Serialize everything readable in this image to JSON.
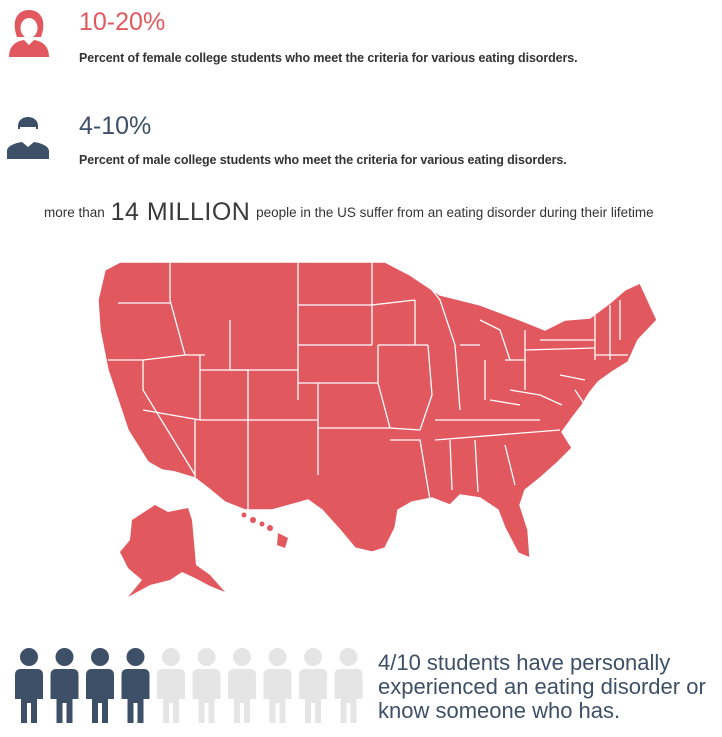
{
  "colors": {
    "accent_red": "#e2585f",
    "navy": "#3d5068",
    "light_gray": "#e5e5e5",
    "text": "#333333"
  },
  "female_stat": {
    "icon": "female-avatar-icon",
    "figure": "10-20%",
    "description": "Percent of female college students who meet the criteria for various eating disorders."
  },
  "male_stat": {
    "icon": "male-avatar-icon",
    "figure": "4-10%",
    "description": "Percent of male college students who meet the criteria for various eating disorders."
  },
  "million": {
    "prefix": "more than",
    "emphasis": "14 MILLION",
    "suffix": "people in the US suffer from an eating disorder during their lifetime"
  },
  "map": {
    "icon": "us-map-icon"
  },
  "students": {
    "highlighted": 4,
    "total": 10,
    "icon": "person-icon",
    "text": "4/10 students have personally experienced an eating disorder or know someone who has."
  }
}
